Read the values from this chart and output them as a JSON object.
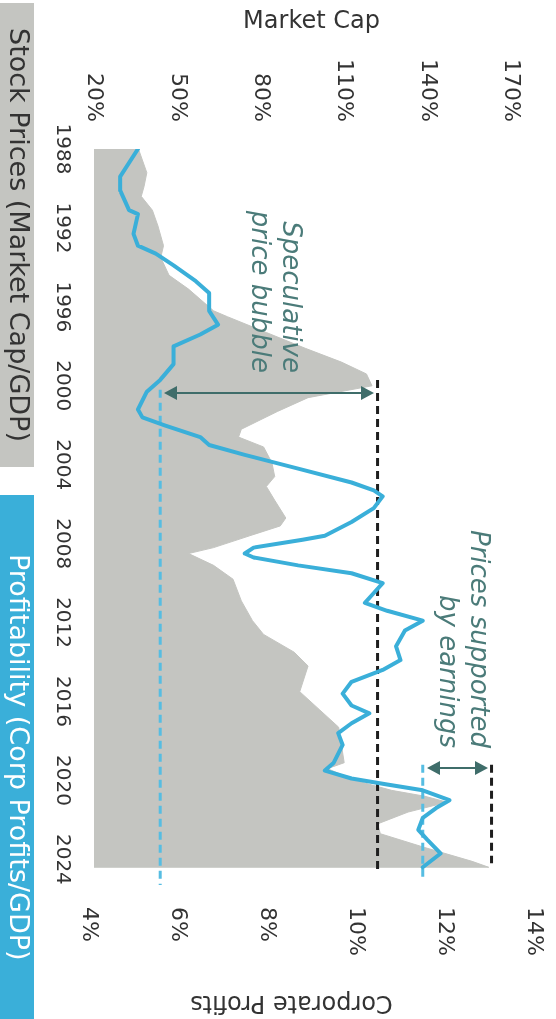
{
  "chart_data": {
    "type": "line",
    "xlabel": "Corporate Profits",
    "x2label": "Market Cap",
    "xlim": [
      4,
      14
    ],
    "xticks": [
      {
        "value": 4,
        "label": "4%"
      },
      {
        "value": 6,
        "label": "6%"
      },
      {
        "value": 8,
        "label": "8%"
      },
      {
        "value": 10,
        "label": "10%"
      },
      {
        "value": 12,
        "label": "12%"
      },
      {
        "value": 14,
        "label": "14%"
      }
    ],
    "x2lim": [
      20,
      170
    ],
    "x2ticks": [
      {
        "value": 20,
        "label": "20%"
      },
      {
        "value": 50,
        "label": "50%"
      },
      {
        "value": 80,
        "label": "80%"
      },
      {
        "value": 110,
        "label": "110%"
      },
      {
        "value": 140,
        "label": "140%"
      },
      {
        "value": 170,
        "label": "170%"
      }
    ],
    "ylim": [
      2025.5,
      1988
    ],
    "yticks": [
      1988,
      1992,
      1996,
      2000,
      2004,
      2008,
      2012,
      2016,
      2020,
      2024
    ],
    "legend": "left",
    "series": [
      {
        "name": "Stock Prices (Market Cap/GDP)",
        "type": "area",
        "axis": "x2",
        "color": "#c4c5c1",
        "x": [
          20,
          36,
          39,
          38,
          37,
          41,
          43,
          45,
          44,
          47,
          54,
          63,
          68,
          82,
          96,
          109,
          118,
          120,
          97,
          86,
          73,
          72,
          81,
          84,
          85,
          82,
          85,
          89,
          87,
          76,
          63,
          54,
          63,
          70,
          73,
          77,
          81,
          92,
          97,
          94,
          101,
          108,
          109,
          110,
          104,
          114,
          127,
          139,
          147,
          133,
          122,
          123,
          139,
          156,
          162,
          20
        ],
        "values": [
          1988,
          1988,
          1989.2,
          1989.9,
          1990.4,
          1991.1,
          1991.9,
          1992.9,
          1993.5,
          1994.4,
          1995.1,
          1996.2,
          1996.5,
          1997.3,
          1998.1,
          1998.8,
          1999.4,
          2000,
          2000.6,
          2001.3,
          2002.2,
          2002.6,
          2003.1,
          2003.9,
          2004.6,
          2005.1,
          2005.8,
          2006.7,
          2007.1,
          2007.6,
          2008.2,
          2008.5,
          2009.1,
          2009.8,
          2010.9,
          2011.9,
          2012.6,
          2013.5,
          2014.2,
          2015.5,
          2016.4,
          2017.3,
          2018.2,
          2019.1,
          2019.4,
          2020,
          2020.5,
          2020.8,
          2021.1,
          2021.6,
          2022.2,
          2022.7,
          2023.4,
          2024.1,
          2024.4,
          2024.4
        ]
      },
      {
        "name": "Profitability (Corp Profits/GDP)",
        "type": "line",
        "color": "#3aafd9",
        "x": [
          5.1,
          4.7,
          4.7,
          4.9,
          5.1,
          5.0,
          5.1,
          5.5,
          5.9,
          6.4,
          6.7,
          6.7,
          6.9,
          6.5,
          5.9,
          5.9,
          5.6,
          5.3,
          5.1,
          5.2,
          5.7,
          6.5,
          6.7,
          7.5,
          8.7,
          9.9,
          10.4,
          10.6,
          10.4,
          9.9,
          9.3,
          8.8,
          7.7,
          7.5,
          7.7,
          8.7,
          9.9,
          10.6,
          10.4,
          10.2,
          10.7,
          11.5,
          11.1,
          10.9,
          11.0,
          10.6,
          9.9,
          9.7,
          9.9,
          10.3,
          9.9,
          9.6,
          9.7,
          9.5,
          9.3,
          9.9,
          10.7,
          11.5,
          12.1,
          11.8,
          11.5,
          11.4,
          11.6,
          11.9,
          11.5
        ],
        "values": [
          1988,
          1989.4,
          1990.1,
          1991.1,
          1991.3,
          1992.3,
          1992.9,
          1993.3,
          1993.9,
          1994.7,
          1995.3,
          1996.2,
          1996.9,
          1997.4,
          1998,
          1998.9,
          1999.7,
          2000.3,
          2001.2,
          2001.6,
          2002,
          2002.6,
          2003,
          2003.5,
          2004.2,
          2004.9,
          2005.3,
          2005.6,
          2006.2,
          2006.9,
          2007.6,
          2007.8,
          2008.2,
          2008.5,
          2008.7,
          2009.1,
          2009.5,
          2010,
          2010.5,
          2011,
          2011.4,
          2011.9,
          2012.4,
          2013.2,
          2013.9,
          2014.4,
          2015,
          2015.6,
          2016.2,
          2016.6,
          2017.1,
          2017.6,
          2018.2,
          2019.1,
          2019.5,
          2019.9,
          2020.2,
          2020.5,
          2021,
          2021.4,
          2021.9,
          2022.5,
          2023,
          2023.7,
          2024.4
        ]
      },
      {
        "type": "line",
        "color": "#56bde2",
        "line_style": "dashed",
        "x": [
          5.6,
          5.6
        ],
        "values": [
          2000.2,
          2025.3
        ]
      },
      {
        "type": "line",
        "axis": "x2",
        "color": "#1e1e1e",
        "line_style": "dashed",
        "x": [
          122,
          122
        ],
        "values": [
          1999.7,
          2024.5
        ]
      },
      {
        "type": "line",
        "color": "#56bde2",
        "line_style": "dashed",
        "x": [
          11.5,
          11.5
        ],
        "values": [
          2019.2,
          2025
        ]
      },
      {
        "type": "line",
        "axis": "x2",
        "color": "#1e1e1e",
        "line_style": "dashed",
        "x": [
          163,
          163
        ],
        "values": [
          2019.2,
          2024.2
        ]
      }
    ],
    "annotations": [
      "Speculative\nprice bubble",
      "Prices supported\nby earnings"
    ]
  }
}
